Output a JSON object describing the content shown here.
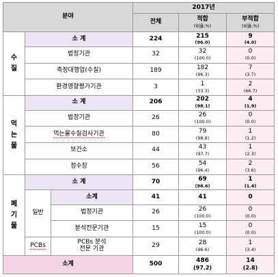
{
  "header": {
    "field": "분야",
    "year": "2017년",
    "total": "전체",
    "pass": "적합",
    "fail": "부적합",
    "ratio": "(비율,%)"
  },
  "water_quality": {
    "category_chars": [
      "수",
      "질"
    ],
    "subtotal": {
      "label": "소 계",
      "total": "224",
      "pass": "215",
      "pass_pct": "(96.0)",
      "fail": "9",
      "fail_pct": "(4.0)"
    },
    "rows": [
      {
        "label": "법정기관",
        "total": "32",
        "pass": "32",
        "pass_pct": "(100.0)",
        "fail": "0",
        "fail_pct": "(0.0)"
      },
      {
        "label": "측정대행업(수질)",
        "total": "189",
        "pass": "182",
        "pass_pct": "(96.3)",
        "fail": "7",
        "fail_pct": "(3.7)"
      },
      {
        "label": "환경영향평가기관",
        "total": "3",
        "pass": "1",
        "pass_pct": "(33.3)",
        "fail": "2",
        "fail_pct": "(66.7)"
      }
    ]
  },
  "drinking_water": {
    "category_chars": [
      "먹",
      "는",
      "물"
    ],
    "subtotal": {
      "label": "소 계",
      "total": "206",
      "pass": "202",
      "pass_pct": "(98.1)",
      "fail": "4",
      "fail_pct": "(1.9)"
    },
    "rows": [
      {
        "label": "법정기관",
        "total": "26",
        "pass": "26",
        "pass_pct": "(100.0)",
        "fail": "0",
        "fail_pct": "(0.0)"
      },
      {
        "label": "먹는물수질검사기관",
        "total": "80",
        "pass": "79",
        "pass_pct": "(98.8)",
        "fail": "1",
        "fail_pct": "(1.2)"
      },
      {
        "label": "보건소",
        "total": "44",
        "pass": "43",
        "pass_pct": "(97.7)",
        "fail": "1",
        "fail_pct": "(2.3)"
      },
      {
        "label": "정수장",
        "total": "56",
        "pass": "54",
        "pass_pct": "(96.4)",
        "fail": "2",
        "fail_pct": "(3.6)"
      }
    ]
  },
  "waste": {
    "category_chars": [
      "폐",
      "기",
      "물"
    ],
    "subtotal": {
      "label": "소 계",
      "total": "70",
      "pass": "69",
      "pass_pct": "(98.6)",
      "fail": "1",
      "fail_pct": "(1.4)"
    },
    "general": {
      "label": "일반",
      "subtotal": {
        "label": "소계",
        "total": "41",
        "pass": "41",
        "fail": "0"
      },
      "rows": [
        {
          "label": "법정기관",
          "total": "26",
          "pass": "26",
          "pass_pct": "(100.0)",
          "fail": "0",
          "fail_pct": "(0.0)"
        },
        {
          "label": "분석전문기관",
          "total": "15",
          "pass": "15",
          "pass_pct": "(100.0)",
          "fail": "0",
          "fail_pct": "(0.0)"
        }
      ]
    },
    "pcbs": {
      "label": "PCBs",
      "row": {
        "label_line1": "PCBs 분석",
        "label_line2": "전문 기관",
        "total": "29",
        "pass": "28",
        "pass_pct": "(96.6)",
        "fail": "1",
        "fail_pct": "(3.4)"
      }
    }
  },
  "grand_total": {
    "label": "소계",
    "total": "500",
    "pass": "486",
    "pass_pct": "(97.2)",
    "fail": "14",
    "fail_pct": "(2.8)"
  },
  "colors": {
    "header_bg": "#d8d8d8",
    "subtotal_bg": "#efe4f3",
    "fail_bg": "#fdeef4",
    "total_bg": "#f3d6e6"
  }
}
